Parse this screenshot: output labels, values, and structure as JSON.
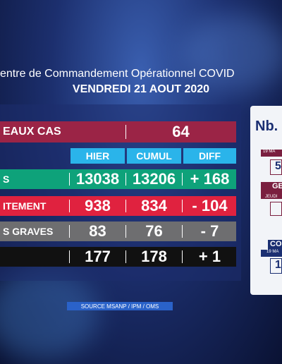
{
  "header": {
    "title": "entre de Commandement Opérationnel COVID",
    "date": "VENDREDI 21 AOUT 2020"
  },
  "new_cases": {
    "label": "EAUX CAS",
    "value": "64"
  },
  "table": {
    "columns": [
      "HIER",
      "CUMUL",
      "DIFF"
    ],
    "rows": [
      [
        "S",
        "13038",
        "13206",
        "+ 168"
      ],
      [
        "ITEMENT",
        "938",
        "834",
        "- 104"
      ],
      [
        "S GRAVES",
        "83",
        "76",
        "- 7"
      ],
      [
        null,
        "177",
        "178",
        "+ 1"
      ]
    ]
  },
  "source": "SOURCE MSANP / IPM / OMS",
  "side": {
    "title": "Nb.",
    "items": [
      "19 MA",
      "5",
      "GE",
      "JEUDI",
      "CO",
      "19 MA",
      "1"
    ]
  }
}
